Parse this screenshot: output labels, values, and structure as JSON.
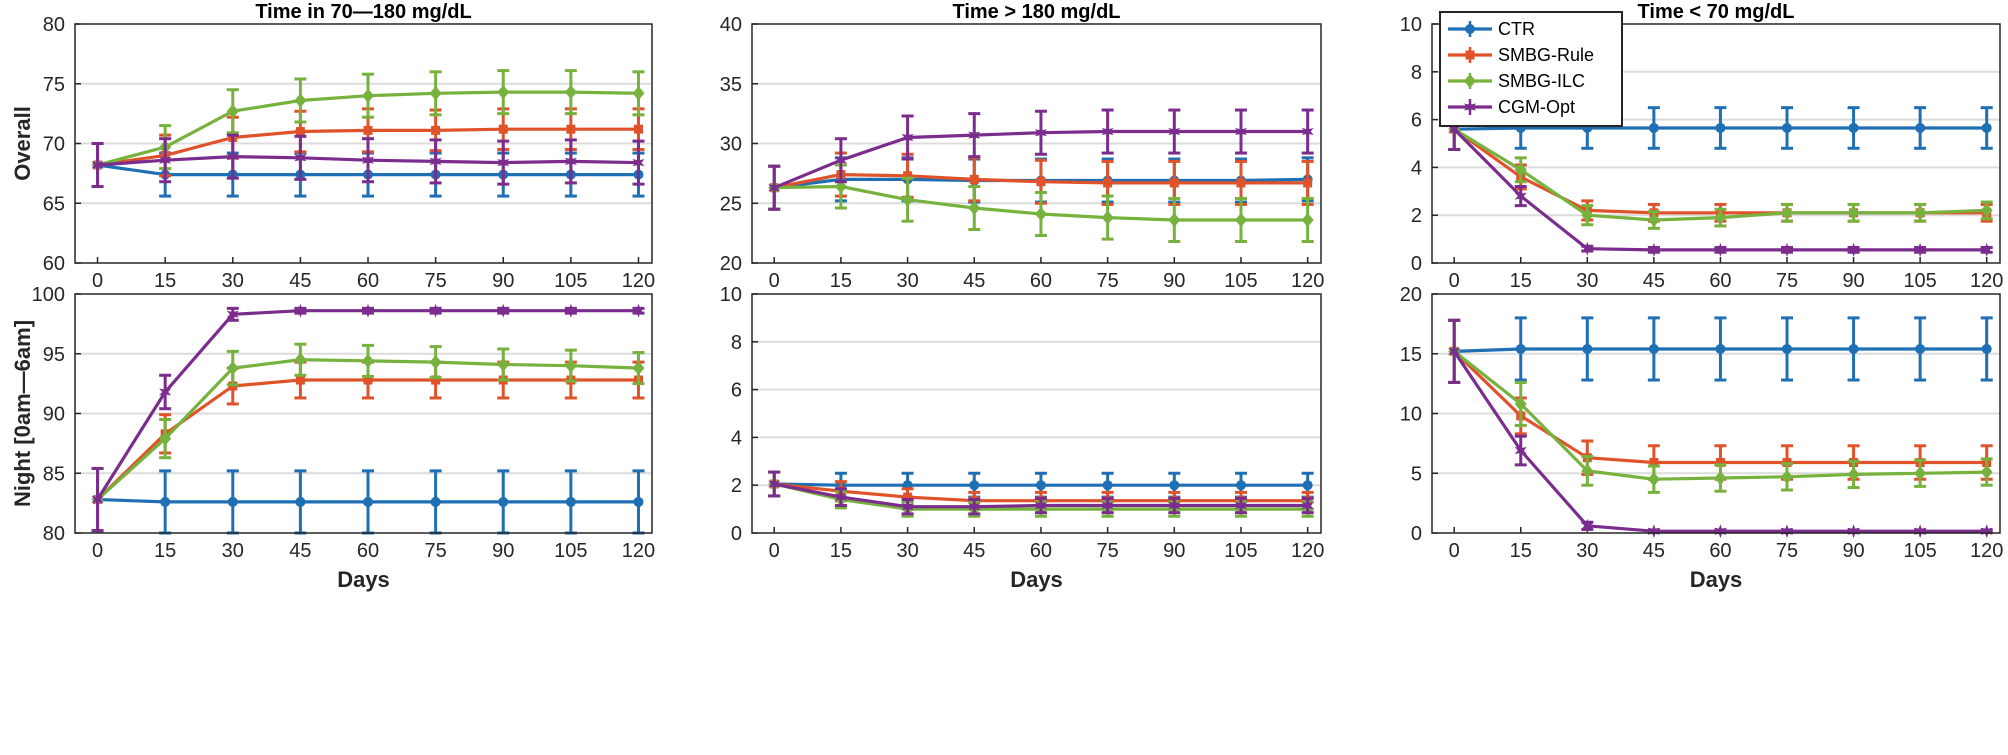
{
  "colors": {
    "CTR": "#1f6fb5",
    "SMBG-Rule": "#e0532a",
    "SMBG-ILC": "#77b23e",
    "CGM-Opt": "#7b2d8e",
    "grid": "#dcdcdc",
    "axis": "#262626"
  },
  "legend": {
    "location": "top-left of top-right panel",
    "entries": [
      "CTR",
      "SMBG-Rule",
      "SMBG-ILC",
      "CGM-Opt"
    ]
  },
  "chart_data": [
    {
      "id": "overall-in-range",
      "type": "line",
      "title": "Time in 70—180 mg/dL",
      "ylabel": "Overall",
      "xlabel": "",
      "x": [
        0,
        15,
        30,
        45,
        60,
        75,
        90,
        105,
        120
      ],
      "xticks": [
        "0",
        "15",
        "30",
        "45",
        "60",
        "75",
        "90",
        "105",
        "120"
      ],
      "ylim": [
        60,
        80
      ],
      "yticks": [
        "60",
        "65",
        "70",
        "75",
        "80"
      ],
      "series": [
        {
          "name": "CTR",
          "values": [
            68.2,
            67.4,
            67.4,
            67.4,
            67.4,
            67.4,
            67.4,
            67.4,
            67.4
          ],
          "err": [
            1.8,
            1.8,
            1.8,
            1.8,
            1.8,
            1.8,
            1.8,
            1.8,
            1.8
          ]
        },
        {
          "name": "SMBG-Rule",
          "values": [
            68.2,
            69.0,
            70.5,
            71.0,
            71.1,
            71.1,
            71.2,
            71.2,
            71.2
          ],
          "err": [
            1.8,
            1.7,
            1.7,
            1.7,
            1.8,
            1.7,
            1.7,
            1.7,
            1.7
          ]
        },
        {
          "name": "SMBG-ILC",
          "values": [
            68.2,
            69.7,
            72.7,
            73.6,
            74.0,
            74.2,
            74.3,
            74.3,
            74.2
          ],
          "err": [
            1.8,
            1.8,
            1.8,
            1.8,
            1.8,
            1.8,
            1.8,
            1.8,
            1.8
          ]
        },
        {
          "name": "CGM-Opt",
          "values": [
            68.2,
            68.6,
            68.9,
            68.8,
            68.6,
            68.5,
            68.4,
            68.5,
            68.4
          ],
          "err": [
            1.8,
            1.8,
            1.8,
            1.8,
            1.8,
            1.8,
            1.8,
            1.8,
            1.8
          ]
        }
      ]
    },
    {
      "id": "overall-above",
      "type": "line",
      "title": "Time > 180 mg/dL",
      "ylabel": "",
      "xlabel": "",
      "x": [
        0,
        15,
        30,
        45,
        60,
        75,
        90,
        105,
        120
      ],
      "xticks": [
        "0",
        "15",
        "30",
        "45",
        "60",
        "75",
        "90",
        "105",
        "120"
      ],
      "ylim": [
        20,
        40
      ],
      "yticks": [
        "20",
        "25",
        "30",
        "35",
        "40"
      ],
      "series": [
        {
          "name": "CTR",
          "values": [
            26.3,
            27.0,
            27.0,
            26.9,
            26.9,
            26.9,
            26.9,
            26.9,
            27.0
          ],
          "err": [
            1.8,
            1.8,
            1.8,
            1.8,
            1.8,
            1.8,
            1.8,
            1.8,
            1.8
          ]
        },
        {
          "name": "SMBG-Rule",
          "values": [
            26.3,
            27.4,
            27.3,
            27.0,
            26.8,
            26.7,
            26.7,
            26.7,
            26.7
          ],
          "err": [
            1.8,
            1.8,
            1.8,
            1.8,
            1.8,
            1.8,
            1.8,
            1.8,
            1.8
          ]
        },
        {
          "name": "SMBG-ILC",
          "values": [
            26.3,
            26.4,
            25.3,
            24.6,
            24.1,
            23.8,
            23.6,
            23.6,
            23.6
          ],
          "err": [
            1.8,
            1.8,
            1.8,
            1.8,
            1.8,
            1.8,
            1.8,
            1.8,
            1.8
          ]
        },
        {
          "name": "CGM-Opt",
          "values": [
            26.3,
            28.6,
            30.5,
            30.7,
            30.9,
            31.0,
            31.0,
            31.0,
            31.0
          ],
          "err": [
            1.8,
            1.8,
            1.8,
            1.8,
            1.8,
            1.8,
            1.8,
            1.8,
            1.8
          ]
        }
      ]
    },
    {
      "id": "overall-below",
      "type": "line",
      "title": "Time < 70 mg/dL",
      "ylabel": "",
      "xlabel": "",
      "x": [
        0,
        15,
        30,
        45,
        60,
        75,
        90,
        105,
        120
      ],
      "xticks": [
        "0",
        "15",
        "30",
        "45",
        "60",
        "75",
        "90",
        "105",
        "120"
      ],
      "ylim": [
        0,
        10
      ],
      "yticks": [
        "0",
        "2",
        "4",
        "6",
        "8",
        "10"
      ],
      "series": [
        {
          "name": "CTR",
          "values": [
            5.6,
            5.65,
            5.65,
            5.65,
            5.65,
            5.65,
            5.65,
            5.65,
            5.65
          ],
          "err": [
            0.85,
            0.85,
            0.85,
            0.85,
            0.85,
            0.85,
            0.85,
            0.85,
            0.85
          ]
        },
        {
          "name": "SMBG-Rule",
          "values": [
            5.6,
            3.6,
            2.2,
            2.1,
            2.1,
            2.1,
            2.1,
            2.1,
            2.1
          ],
          "err": [
            0.85,
            0.5,
            0.4,
            0.35,
            0.35,
            0.35,
            0.35,
            0.35,
            0.35
          ]
        },
        {
          "name": "SMBG-ILC",
          "values": [
            5.6,
            3.9,
            2.0,
            1.8,
            1.9,
            2.1,
            2.1,
            2.1,
            2.2
          ],
          "err": [
            0.85,
            0.5,
            0.4,
            0.35,
            0.35,
            0.35,
            0.35,
            0.35,
            0.35
          ]
        },
        {
          "name": "CGM-Opt",
          "values": [
            5.6,
            2.8,
            0.6,
            0.55,
            0.55,
            0.55,
            0.55,
            0.55,
            0.55
          ],
          "err": [
            0.85,
            0.4,
            0.1,
            0.1,
            0.1,
            0.1,
            0.1,
            0.1,
            0.1
          ]
        }
      ]
    },
    {
      "id": "night-in-range",
      "type": "line",
      "title": "",
      "ylabel": "Night [0am—6am]",
      "xlabel": "Days",
      "x": [
        0,
        15,
        30,
        45,
        60,
        75,
        90,
        105,
        120
      ],
      "xticks": [
        "0",
        "15",
        "30",
        "45",
        "60",
        "75",
        "90",
        "105",
        "120"
      ],
      "ylim": [
        80,
        100
      ],
      "yticks": [
        "80",
        "85",
        "90",
        "95",
        "100"
      ],
      "series": [
        {
          "name": "CTR",
          "values": [
            82.8,
            82.6,
            82.6,
            82.6,
            82.6,
            82.6,
            82.6,
            82.6,
            82.6
          ],
          "err": [
            2.6,
            2.6,
            2.6,
            2.6,
            2.6,
            2.6,
            2.6,
            2.6,
            2.6
          ]
        },
        {
          "name": "SMBG-Rule",
          "values": [
            82.8,
            88.3,
            92.3,
            92.8,
            92.8,
            92.8,
            92.8,
            92.8,
            92.8
          ],
          "err": [
            2.6,
            1.6,
            1.5,
            1.5,
            1.5,
            1.5,
            1.5,
            1.5,
            1.5
          ]
        },
        {
          "name": "SMBG-ILC",
          "values": [
            82.8,
            87.9,
            93.8,
            94.5,
            94.4,
            94.3,
            94.1,
            94.0,
            93.8
          ],
          "err": [
            2.6,
            1.6,
            1.4,
            1.3,
            1.3,
            1.3,
            1.3,
            1.3,
            1.3
          ]
        },
        {
          "name": "CGM-Opt",
          "values": [
            82.8,
            91.8,
            98.3,
            98.6,
            98.6,
            98.6,
            98.6,
            98.6,
            98.6
          ],
          "err": [
            2.6,
            1.4,
            0.5,
            0.2,
            0.2,
            0.2,
            0.2,
            0.2,
            0.2
          ]
        }
      ]
    },
    {
      "id": "night-above",
      "type": "line",
      "title": "",
      "ylabel": "",
      "xlabel": "Days",
      "x": [
        0,
        15,
        30,
        45,
        60,
        75,
        90,
        105,
        120
      ],
      "xticks": [
        "0",
        "15",
        "30",
        "45",
        "60",
        "75",
        "90",
        "105",
        "120"
      ],
      "ylim": [
        0,
        10
      ],
      "yticks": [
        "0",
        "2",
        "4",
        "6",
        "8",
        "10"
      ],
      "series": [
        {
          "name": "CTR",
          "values": [
            2.05,
            2.0,
            2.0,
            2.0,
            2.0,
            2.0,
            2.0,
            2.0,
            2.0
          ],
          "err": [
            0.5,
            0.5,
            0.5,
            0.5,
            0.5,
            0.5,
            0.5,
            0.5,
            0.5
          ]
        },
        {
          "name": "SMBG-Rule",
          "values": [
            2.05,
            1.75,
            1.5,
            1.35,
            1.35,
            1.35,
            1.35,
            1.35,
            1.35
          ],
          "err": [
            0.5,
            0.4,
            0.35,
            0.35,
            0.35,
            0.35,
            0.35,
            0.35,
            0.35
          ]
        },
        {
          "name": "SMBG-ILC",
          "values": [
            2.05,
            1.4,
            1.0,
            1.0,
            1.0,
            1.0,
            1.0,
            1.0,
            1.0
          ],
          "err": [
            0.5,
            0.35,
            0.3,
            0.3,
            0.3,
            0.3,
            0.3,
            0.3,
            0.3
          ]
        },
        {
          "name": "CGM-Opt",
          "values": [
            2.05,
            1.5,
            1.1,
            1.1,
            1.15,
            1.15,
            1.15,
            1.15,
            1.15
          ],
          "err": [
            0.5,
            0.35,
            0.3,
            0.3,
            0.3,
            0.3,
            0.3,
            0.3,
            0.3
          ]
        }
      ]
    },
    {
      "id": "night-below",
      "type": "line",
      "title": "",
      "ylabel": "",
      "xlabel": "Days",
      "x": [
        0,
        15,
        30,
        45,
        60,
        75,
        90,
        105,
        120
      ],
      "xticks": [
        "0",
        "15",
        "30",
        "45",
        "60",
        "75",
        "90",
        "105",
        "120"
      ],
      "ylim": [
        0,
        20
      ],
      "yticks": [
        "0",
        "5",
        "10",
        "15",
        "20"
      ],
      "series": [
        {
          "name": "CTR",
          "values": [
            15.2,
            15.4,
            15.4,
            15.4,
            15.4,
            15.4,
            15.4,
            15.4,
            15.4
          ],
          "err": [
            2.6,
            2.6,
            2.6,
            2.6,
            2.6,
            2.6,
            2.6,
            2.6,
            2.6
          ]
        },
        {
          "name": "SMBG-Rule",
          "values": [
            15.2,
            9.8,
            6.3,
            5.9,
            5.9,
            5.9,
            5.9,
            5.9,
            5.9
          ],
          "err": [
            2.6,
            1.5,
            1.4,
            1.4,
            1.4,
            1.4,
            1.4,
            1.4,
            1.4
          ]
        },
        {
          "name": "SMBG-ILC",
          "values": [
            15.2,
            10.8,
            5.2,
            4.5,
            4.6,
            4.7,
            4.9,
            5.0,
            5.1
          ],
          "err": [
            2.6,
            1.8,
            1.2,
            1.1,
            1.1,
            1.1,
            1.1,
            1.1,
            1.1
          ]
        },
        {
          "name": "CGM-Opt",
          "values": [
            15.2,
            6.9,
            0.6,
            0.15,
            0.15,
            0.15,
            0.15,
            0.15,
            0.15
          ],
          "err": [
            2.6,
            1.2,
            0.3,
            0.1,
            0.1,
            0.1,
            0.1,
            0.1,
            0.1
          ]
        }
      ]
    }
  ]
}
